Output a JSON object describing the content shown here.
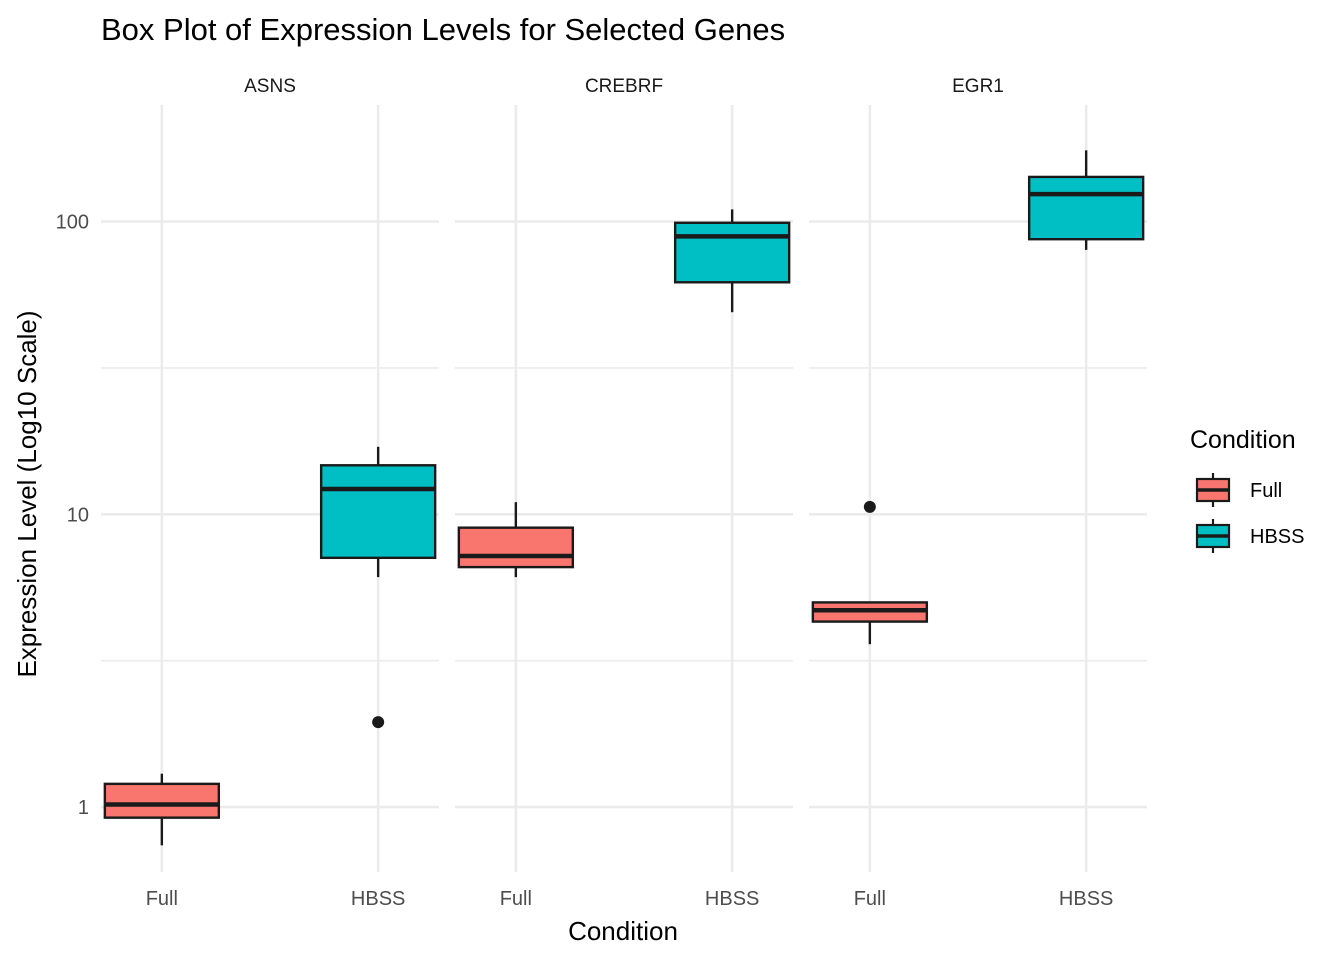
{
  "chart_data": {
    "type": "box",
    "title": "Box Plot of Expression Levels for Selected Genes",
    "xlabel": "Condition",
    "ylabel": "Expression Level (Log10 Scale)",
    "y_scale": "log10",
    "ylim": [
      0.6,
      250
    ],
    "y_ticks": [
      1,
      10,
      100
    ],
    "y_tick_labels": [
      "1",
      "10",
      "100"
    ],
    "categories": [
      "Full",
      "HBSS"
    ],
    "facets": [
      "ASNS",
      "CREBRF",
      "EGR1"
    ],
    "legend": {
      "title": "Condition",
      "position": "right",
      "entries": [
        "Full",
        "HBSS"
      ]
    },
    "colors": {
      "Full": "#F8766D",
      "HBSS": "#00BFC4",
      "outline": "#1a1a1a"
    },
    "grid": true,
    "boxes": [
      {
        "facet": "ASNS",
        "condition": "Full",
        "whisker_low": 0.74,
        "q1": 0.92,
        "median": 1.02,
        "q3": 1.2,
        "whisker_high": 1.3,
        "outliers": []
      },
      {
        "facet": "ASNS",
        "condition": "HBSS",
        "whisker_low": 6.1,
        "q1": 7.1,
        "median": 12.2,
        "q3": 14.7,
        "whisker_high": 17.0,
        "outliers": [
          1.95
        ]
      },
      {
        "facet": "CREBRF",
        "condition": "Full",
        "whisker_low": 6.1,
        "q1": 6.6,
        "median": 7.2,
        "q3": 9.0,
        "whisker_high": 11.0,
        "outliers": []
      },
      {
        "facet": "CREBRF",
        "condition": "HBSS",
        "whisker_low": 49,
        "q1": 62,
        "median": 89,
        "q3": 99,
        "whisker_high": 110,
        "outliers": []
      },
      {
        "facet": "EGR1",
        "condition": "Full",
        "whisker_low": 3.6,
        "q1": 4.3,
        "median": 4.7,
        "q3": 5.0,
        "whisker_high": 5.0,
        "outliers": [
          10.6
        ]
      },
      {
        "facet": "EGR1",
        "condition": "HBSS",
        "whisker_low": 80,
        "q1": 87,
        "median": 124,
        "q3": 142,
        "whisker_high": 175,
        "outliers": []
      }
    ]
  }
}
